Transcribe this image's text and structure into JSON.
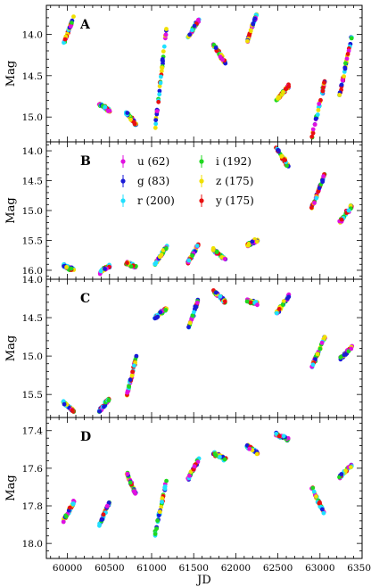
{
  "chart_data": [
    {
      "type": "scatter",
      "panel_label": "A",
      "ylabel": "Mag",
      "ylim": [
        15.3,
        13.65
      ],
      "yticks": [
        14.0,
        14.5,
        15.0
      ],
      "ytick_labels": [
        "14.0",
        "14.5",
        "15.0"
      ],
      "xlim": [
        59750,
        63500
      ],
      "grid": false,
      "segments": [
        {
          "x": [
            59950,
            60080
          ],
          "y": [
            14.12,
            13.78
          ]
        },
        {
          "x": [
            60380,
            60500
          ],
          "y": [
            14.85,
            14.92
          ]
        },
        {
          "x": [
            60700,
            60820
          ],
          "y": [
            14.95,
            15.1
          ]
        },
        {
          "x": [
            61040,
            61180
          ],
          "y": [
            15.15,
            13.9
          ]
        },
        {
          "x": [
            61430,
            61560
          ],
          "y": [
            14.05,
            13.82
          ]
        },
        {
          "x": [
            61730,
            61880
          ],
          "y": [
            14.12,
            14.35
          ]
        },
        {
          "x": [
            62130,
            62260
          ],
          "y": [
            14.1,
            13.72
          ]
        },
        {
          "x": [
            62480,
            62630
          ],
          "y": [
            14.8,
            14.62
          ]
        },
        {
          "x": [
            62900,
            63060
          ],
          "y": [
            15.25,
            14.55
          ]
        },
        {
          "x": [
            63230,
            63380
          ],
          "y": [
            14.75,
            14.0
          ]
        }
      ]
    },
    {
      "type": "scatter",
      "panel_label": "B",
      "ylabel": "Mag",
      "ylim": [
        16.15,
        13.85
      ],
      "yticks": [
        14.0,
        14.5,
        15.0,
        15.5,
        16.0
      ],
      "ytick_labels": [
        "14.0",
        "14.5",
        "15.0",
        "15.5",
        "16.0"
      ],
      "xlim": [
        59750,
        63500
      ],
      "grid": false,
      "legend": {
        "placement": "top-left",
        "entries": [
          {
            "band": "u",
            "count": "(62)",
            "color": "#e010e0"
          },
          {
            "band": "g",
            "count": "(83)",
            "color": "#1a1ad8"
          },
          {
            "band": "r",
            "count": "(200)",
            "color": "#20e0ff"
          },
          {
            "band": "i",
            "count": "(192)",
            "color": "#20d820"
          },
          {
            "band": "z",
            "count": "(175)",
            "color": "#f0e000"
          },
          {
            "band": "y",
            "count": "(175)",
            "color": "#e81010"
          }
        ]
      },
      "segments": [
        {
          "x": [
            59950,
            60080
          ],
          "y": [
            15.92,
            16.0
          ]
        },
        {
          "x": [
            60380,
            60500
          ],
          "y": [
            16.05,
            15.92
          ]
        },
        {
          "x": [
            60700,
            60820
          ],
          "y": [
            15.88,
            15.95
          ]
        },
        {
          "x": [
            61040,
            61180
          ],
          "y": [
            15.9,
            15.6
          ]
        },
        {
          "x": [
            61430,
            61560
          ],
          "y": [
            15.88,
            15.55
          ]
        },
        {
          "x": [
            61730,
            61880
          ],
          "y": [
            15.65,
            15.82
          ]
        },
        {
          "x": [
            62130,
            62260
          ],
          "y": [
            15.58,
            15.5
          ]
        },
        {
          "x": [
            62480,
            62630
          ],
          "y": [
            13.95,
            14.28
          ]
        },
        {
          "x": [
            62900,
            63060
          ],
          "y": [
            14.98,
            14.38
          ]
        },
        {
          "x": [
            63230,
            63380
          ],
          "y": [
            15.2,
            14.92
          ]
        }
      ]
    },
    {
      "type": "scatter",
      "panel_label": "C",
      "ylabel": "Mag",
      "ylim": [
        15.8,
        14.0
      ],
      "yticks": [
        14.0,
        14.5,
        15.0,
        15.5
      ],
      "ytick_labels": [
        "14.0",
        "14.5",
        "15.0",
        "15.5"
      ],
      "xlim": [
        59750,
        63500
      ],
      "grid": false,
      "segments": [
        {
          "x": [
            59950,
            60080
          ],
          "y": [
            15.6,
            15.72
          ]
        },
        {
          "x": [
            60380,
            60500
          ],
          "y": [
            15.72,
            15.55
          ]
        },
        {
          "x": [
            60700,
            60820
          ],
          "y": [
            15.55,
            15.0
          ]
        },
        {
          "x": [
            61040,
            61180
          ],
          "y": [
            14.5,
            14.38
          ]
        },
        {
          "x": [
            61430,
            61560
          ],
          "y": [
            14.65,
            14.25
          ]
        },
        {
          "x": [
            61730,
            61880
          ],
          "y": [
            14.15,
            14.3
          ]
        },
        {
          "x": [
            62130,
            62260
          ],
          "y": [
            14.28,
            14.32
          ]
        },
        {
          "x": [
            62480,
            62630
          ],
          "y": [
            14.45,
            14.22
          ]
        },
        {
          "x": [
            62900,
            63060
          ],
          "y": [
            15.15,
            14.75
          ]
        },
        {
          "x": [
            63230,
            63380
          ],
          "y": [
            15.05,
            14.88
          ]
        }
      ]
    },
    {
      "type": "scatter",
      "panel_label": "D",
      "ylabel": "Mag",
      "xlabel": "JD",
      "ylim": [
        18.08,
        17.33
      ],
      "yticks": [
        17.4,
        17.6,
        17.8,
        18.0
      ],
      "ytick_labels": [
        "17.4",
        "17.6",
        "17.8",
        "18.0"
      ],
      "xlim": [
        59750,
        63500
      ],
      "xticks": [
        60000,
        60500,
        61000,
        61500,
        62000,
        62500,
        63000,
        63500
      ],
      "xtick_labels": [
        "60000",
        "60500",
        "61000",
        "61500",
        "62000",
        "62500",
        "63000",
        "63500"
      ],
      "grid": false,
      "segments": [
        {
          "x": [
            59950,
            60080
          ],
          "y": [
            17.88,
            17.78
          ]
        },
        {
          "x": [
            60380,
            60500
          ],
          "y": [
            17.9,
            17.78
          ]
        },
        {
          "x": [
            60700,
            60820
          ],
          "y": [
            17.62,
            17.75
          ]
        },
        {
          "x": [
            61040,
            61180
          ],
          "y": [
            17.95,
            17.66
          ]
        },
        {
          "x": [
            61430,
            61560
          ],
          "y": [
            17.66,
            17.55
          ]
        },
        {
          "x": [
            61730,
            61880
          ],
          "y": [
            17.52,
            17.55
          ]
        },
        {
          "x": [
            62130,
            62260
          ],
          "y": [
            17.48,
            17.52
          ]
        },
        {
          "x": [
            62480,
            62630
          ],
          "y": [
            17.42,
            17.45
          ]
        },
        {
          "x": [
            62900,
            63060
          ],
          "y": [
            17.7,
            17.85
          ]
        },
        {
          "x": [
            63230,
            63380
          ],
          "y": [
            17.65,
            17.58
          ]
        }
      ]
    }
  ]
}
